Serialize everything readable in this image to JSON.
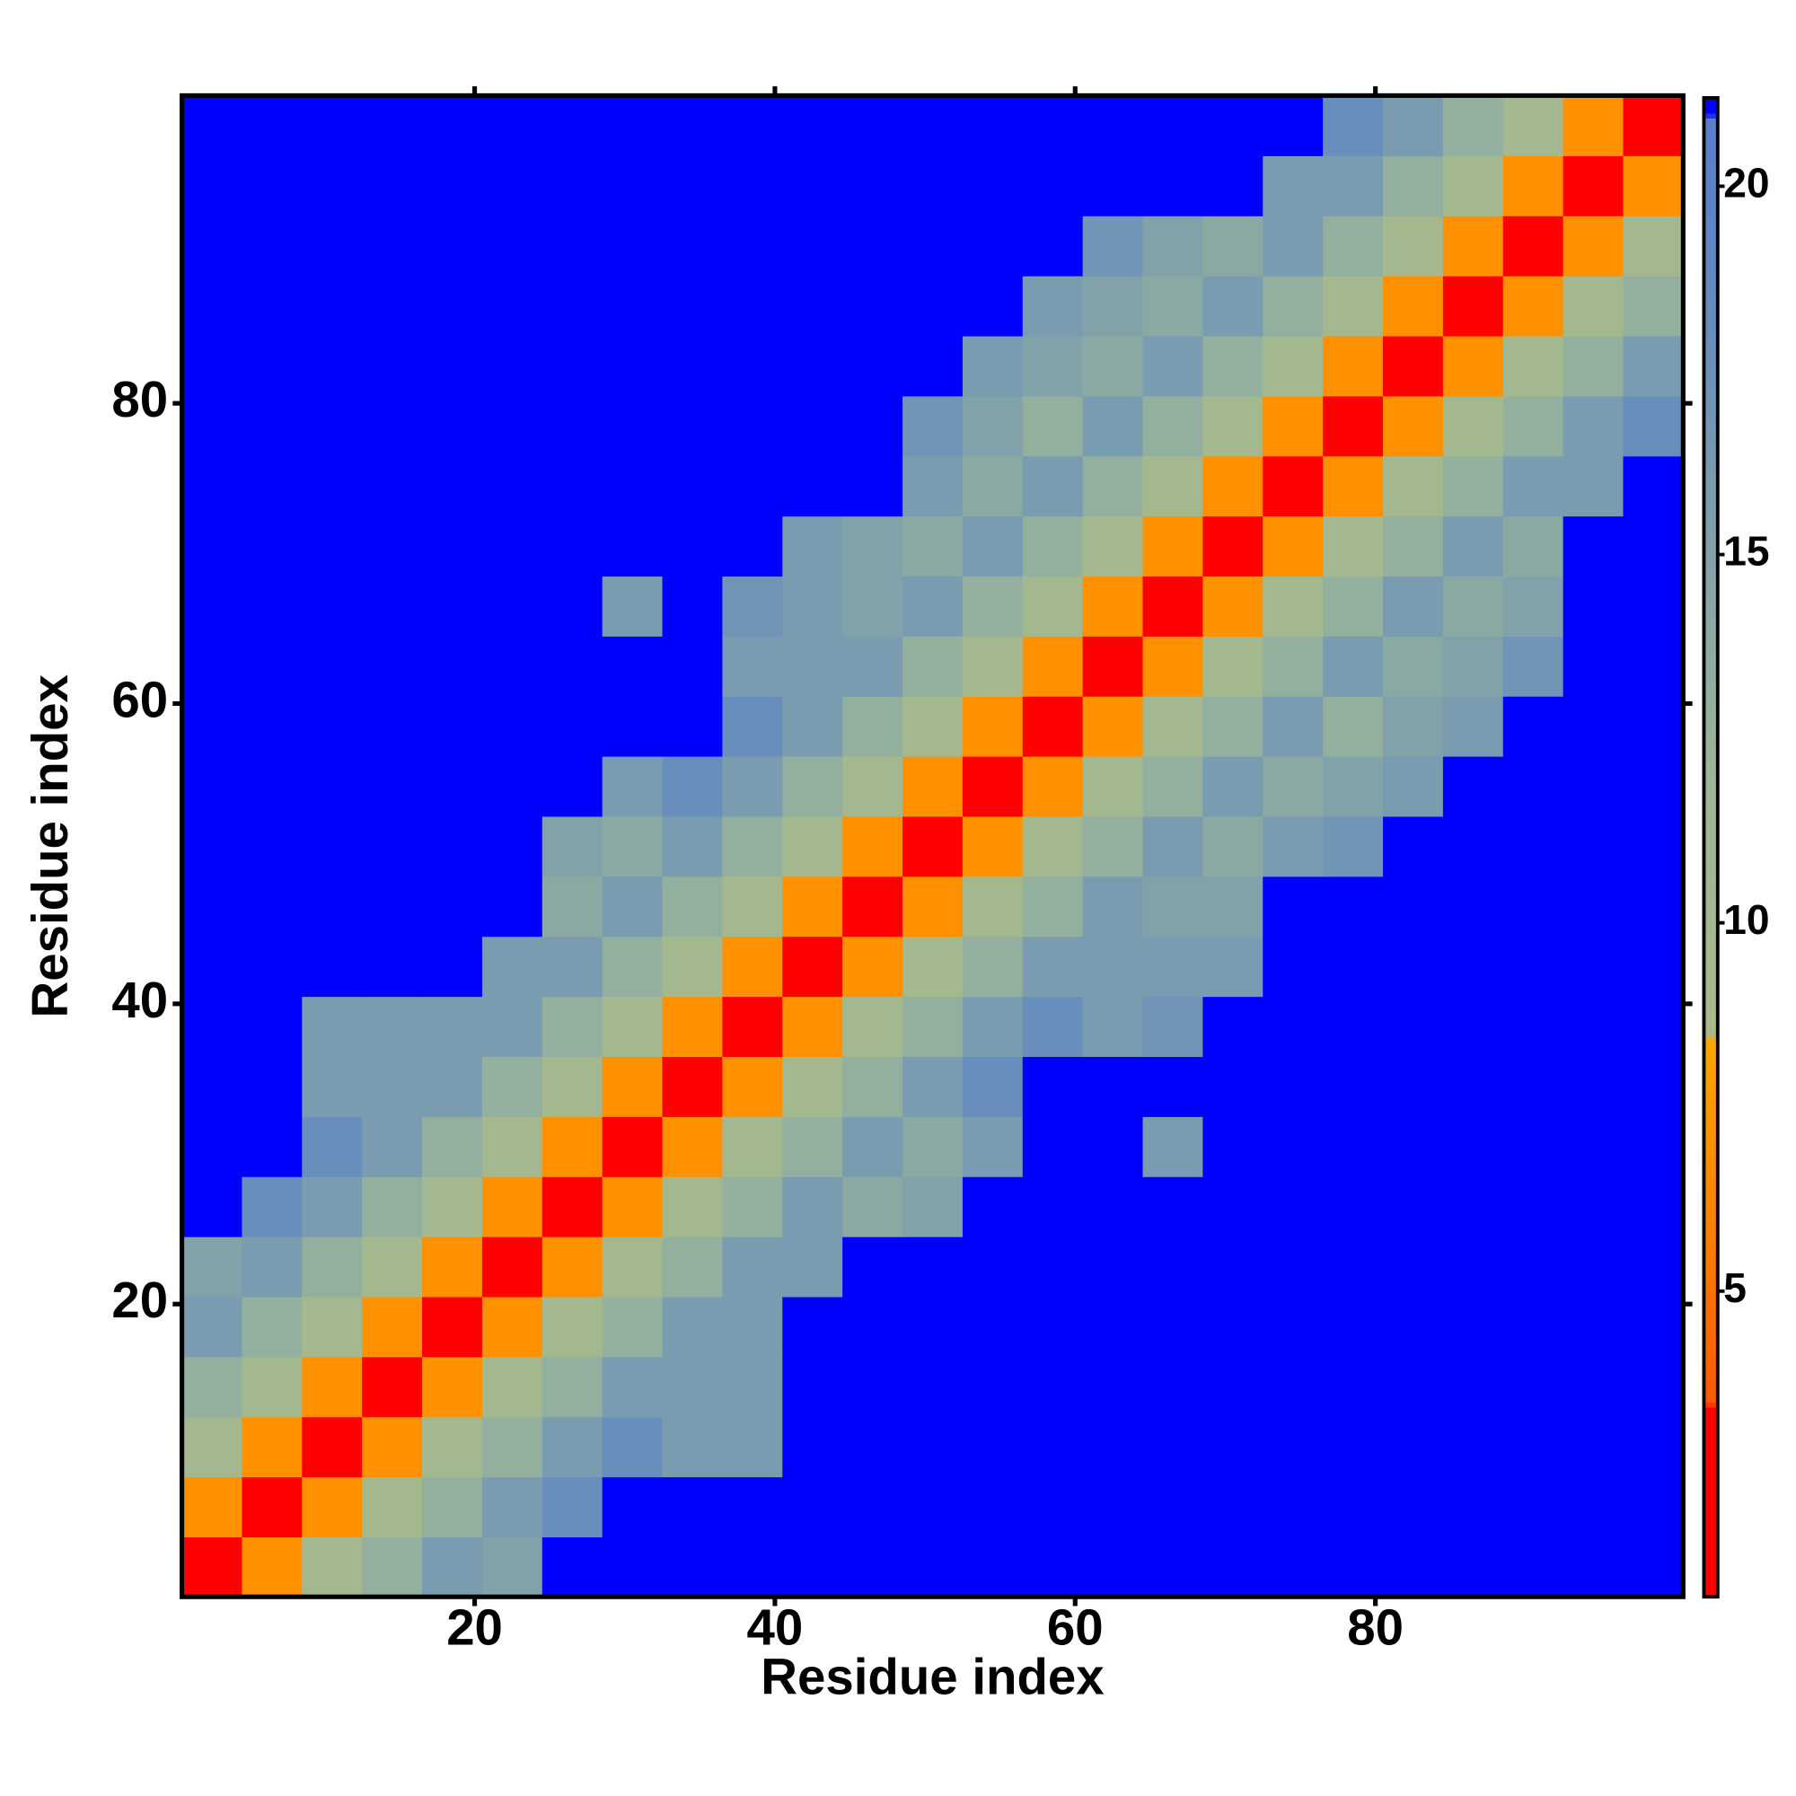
{
  "chart_data": {
    "type": "heatmap",
    "x_label": "Residue index",
    "y_label": "Residue index",
    "xlim": [
      0.5,
      100.5
    ],
    "ylim": [
      0.5,
      100.5
    ],
    "xticks": [
      20,
      40,
      60,
      80
    ],
    "yticks": [
      20,
      40,
      60,
      80
    ],
    "xbins": [
      0.5,
      4.5,
      8.5,
      12.5,
      16.5,
      20.5,
      24.5,
      28.5,
      32.5,
      36.5,
      40.5,
      44.5,
      48.5,
      52.5,
      56.5,
      60.5,
      64.5,
      68.5,
      72.5,
      76.5,
      80.5,
      84.5,
      88.5,
      92.5,
      96.5,
      100.5
    ],
    "ybins": [
      0.5,
      4.5,
      8.5,
      12.5,
      16.5,
      20.5,
      24.5,
      28.5,
      32.5,
      36.5,
      40.5,
      44.5,
      48.5,
      52.5,
      56.5,
      60.5,
      64.5,
      68.5,
      72.5,
      76.5,
      80.5,
      84.5,
      88.5,
      92.5,
      96.5,
      100.5
    ],
    "z": [
      [
        3,
        7,
        10,
        13,
        16,
        15,
        21,
        21,
        21,
        21,
        21,
        21,
        21,
        21,
        21,
        21,
        21,
        21,
        21,
        21,
        21,
        21,
        21,
        21,
        21
      ],
      [
        7,
        3,
        7,
        10,
        13,
        16,
        18,
        21,
        21,
        21,
        21,
        21,
        21,
        21,
        21,
        21,
        21,
        21,
        21,
        21,
        21,
        21,
        21,
        21,
        21
      ],
      [
        10,
        7,
        3,
        7,
        10,
        13,
        16,
        18,
        16,
        16,
        21,
        21,
        21,
        21,
        21,
        21,
        21,
        21,
        21,
        21,
        21,
        21,
        21,
        21,
        21
      ],
      [
        13,
        10,
        7,
        3,
        7,
        10,
        13,
        16,
        16,
        16,
        21,
        21,
        21,
        21,
        21,
        21,
        21,
        21,
        21,
        21,
        21,
        21,
        21,
        21,
        21
      ],
      [
        16,
        13,
        10,
        7,
        3,
        7,
        10,
        13,
        16,
        16,
        21,
        21,
        21,
        21,
        21,
        21,
        21,
        21,
        21,
        21,
        21,
        21,
        21,
        21,
        21
      ],
      [
        15,
        16,
        13,
        10,
        7,
        3,
        7,
        10,
        13,
        16,
        16,
        21,
        21,
        21,
        21,
        21,
        21,
        21,
        21,
        21,
        21,
        21,
        21,
        21,
        21
      ],
      [
        21,
        18,
        16,
        13,
        10,
        7,
        3,
        7,
        10,
        13,
        16,
        14,
        15,
        21,
        21,
        21,
        21,
        21,
        21,
        21,
        21,
        21,
        21,
        21,
        21
      ],
      [
        21,
        21,
        18,
        16,
        13,
        10,
        7,
        3,
        7,
        10,
        13,
        16,
        14,
        16,
        21,
        21,
        16,
        21,
        21,
        21,
        21,
        21,
        21,
        21,
        21
      ],
      [
        21,
        21,
        16,
        16,
        16,
        13,
        10,
        7,
        3,
        7,
        10,
        13,
        16,
        18,
        21,
        21,
        21,
        21,
        21,
        21,
        21,
        21,
        21,
        21,
        21
      ],
      [
        21,
        21,
        16,
        16,
        16,
        16,
        13,
        10,
        7,
        3,
        7,
        10,
        13,
        16,
        18,
        16,
        17,
        21,
        21,
        21,
        21,
        21,
        21,
        21,
        21
      ],
      [
        21,
        21,
        21,
        21,
        21,
        16,
        16,
        13,
        10,
        7,
        3,
        7,
        10,
        13,
        16,
        16,
        16,
        16,
        21,
        21,
        21,
        21,
        21,
        21,
        21
      ],
      [
        21,
        21,
        21,
        21,
        21,
        21,
        14,
        16,
        13,
        10,
        7,
        3,
        7,
        10,
        13,
        16,
        15,
        15,
        21,
        21,
        21,
        21,
        21,
        21,
        21
      ],
      [
        21,
        21,
        21,
        21,
        21,
        21,
        15,
        14,
        16,
        13,
        10,
        7,
        3,
        7,
        10,
        13,
        16,
        14,
        16,
        17,
        21,
        21,
        21,
        21,
        21
      ],
      [
        21,
        21,
        21,
        21,
        21,
        21,
        21,
        16,
        18,
        16,
        13,
        10,
        7,
        3,
        7,
        10,
        13,
        16,
        14,
        15,
        16,
        21,
        21,
        21,
        21
      ],
      [
        21,
        21,
        21,
        21,
        21,
        21,
        21,
        21,
        21,
        18,
        16,
        13,
        10,
        7,
        3,
        7,
        10,
        13,
        16,
        13,
        15,
        16,
        21,
        21,
        21
      ],
      [
        21,
        21,
        21,
        21,
        21,
        21,
        21,
        21,
        21,
        16,
        16,
        16,
        13,
        10,
        7,
        3,
        7,
        10,
        13,
        16,
        14,
        15,
        17,
        21,
        21
      ],
      [
        21,
        21,
        21,
        21,
        21,
        21,
        21,
        16,
        21,
        17,
        16,
        15,
        16,
        13,
        10,
        7,
        3,
        7,
        10,
        13,
        16,
        14,
        15,
        21,
        21
      ],
      [
        21,
        21,
        21,
        21,
        21,
        21,
        21,
        21,
        21,
        21,
        16,
        15,
        14,
        16,
        13,
        10,
        7,
        3,
        7,
        10,
        13,
        16,
        14,
        21,
        21
      ],
      [
        21,
        21,
        21,
        21,
        21,
        21,
        21,
        21,
        21,
        21,
        21,
        21,
        16,
        14,
        16,
        13,
        10,
        7,
        3,
        7,
        10,
        13,
        16,
        16,
        21
      ],
      [
        21,
        21,
        21,
        21,
        21,
        21,
        21,
        21,
        21,
        21,
        21,
        21,
        17,
        15,
        13,
        16,
        13,
        10,
        7,
        3,
        7,
        10,
        13,
        16,
        18
      ],
      [
        21,
        21,
        21,
        21,
        21,
        21,
        21,
        21,
        21,
        21,
        21,
        21,
        21,
        16,
        15,
        14,
        16,
        13,
        10,
        7,
        3,
        7,
        10,
        13,
        16
      ],
      [
        21,
        21,
        21,
        21,
        21,
        21,
        21,
        21,
        21,
        21,
        21,
        21,
        21,
        21,
        16,
        15,
        14,
        16,
        13,
        10,
        7,
        3,
        7,
        10,
        13
      ],
      [
        21,
        21,
        21,
        21,
        21,
        21,
        21,
        21,
        21,
        21,
        21,
        21,
        21,
        21,
        21,
        17,
        15,
        14,
        16,
        13,
        10,
        7,
        3,
        7,
        10
      ],
      [
        21,
        21,
        21,
        21,
        21,
        21,
        21,
        21,
        21,
        21,
        21,
        21,
        21,
        21,
        21,
        21,
        21,
        21,
        16,
        16,
        13,
        10,
        7,
        3,
        7
      ],
      [
        21,
        21,
        21,
        21,
        21,
        21,
        21,
        21,
        21,
        21,
        21,
        21,
        21,
        21,
        21,
        21,
        21,
        21,
        21,
        18,
        16,
        13,
        10,
        7,
        3
      ]
    ],
    "colorbar": {
      "lim": [
        0.85,
        21.2
      ],
      "ticks": [
        5,
        10,
        15,
        20
      ],
      "colorscale": [
        [
          0.85,
          "#ff0000"
        ],
        [
          3.4,
          "#ff0000"
        ],
        [
          3.5,
          "#ff5a00"
        ],
        [
          6,
          "#ff8200"
        ],
        [
          8.4,
          "#ffa500"
        ],
        [
          8.5,
          "#aab98a"
        ],
        [
          12,
          "#9cb697"
        ],
        [
          19,
          "#5f88c2"
        ],
        [
          20.9,
          "#5a7ecb"
        ],
        [
          21,
          "#0000ff"
        ]
      ]
    }
  }
}
